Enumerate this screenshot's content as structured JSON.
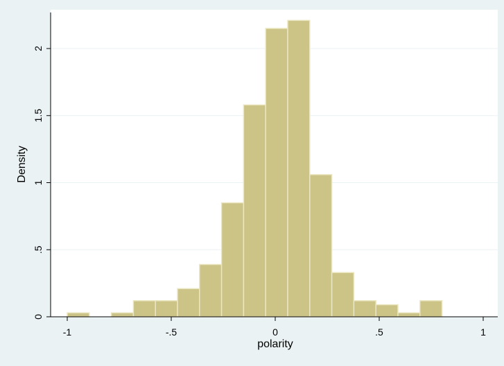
{
  "chart_data": {
    "type": "bar",
    "subtype": "histogram",
    "xlabel": "polarity",
    "ylabel": "Density",
    "xlim": [
      -1,
      1
    ],
    "ylim": [
      0,
      2.2
    ],
    "x_ticks": [
      {
        "value": -1,
        "label": "-1"
      },
      {
        "value": -0.5,
        "label": "-.5"
      },
      {
        "value": 0,
        "label": "0"
      },
      {
        "value": 0.5,
        "label": ".5"
      },
      {
        "value": 1,
        "label": "1"
      }
    ],
    "y_ticks": [
      {
        "value": 0,
        "label": "0"
      },
      {
        "value": 0.5,
        "label": ".5"
      },
      {
        "value": 1,
        "label": "1"
      },
      {
        "value": 1.5,
        "label": "1.5"
      },
      {
        "value": 2,
        "label": "2"
      }
    ],
    "grid": "horizontal",
    "bin_width": 0.106,
    "bins": [
      {
        "start": -1.0,
        "density": 0.03
      },
      {
        "start": -0.788,
        "density": 0.03
      },
      {
        "start": -0.682,
        "density": 0.12
      },
      {
        "start": -0.576,
        "density": 0.12
      },
      {
        "start": -0.47,
        "density": 0.21
      },
      {
        "start": -0.364,
        "density": 0.39
      },
      {
        "start": -0.258,
        "density": 0.85
      },
      {
        "start": -0.152,
        "density": 1.58
      },
      {
        "start": -0.046,
        "density": 2.15
      },
      {
        "start": 0.06,
        "density": 2.21
      },
      {
        "start": 0.166,
        "density": 1.06
      },
      {
        "start": 0.272,
        "density": 0.33
      },
      {
        "start": 0.378,
        "density": 0.12
      },
      {
        "start": 0.484,
        "density": 0.09
      },
      {
        "start": 0.59,
        "density": 0.03
      },
      {
        "start": 0.696,
        "density": 0.12
      }
    ],
    "colors": {
      "bar_fill": "#ccc387",
      "bar_stroke": "#ece7c3",
      "plot_background": "#ffffff",
      "outer_background": "#eaf2f3",
      "gridline": "#eaf2f3",
      "axis": "#000000"
    }
  }
}
